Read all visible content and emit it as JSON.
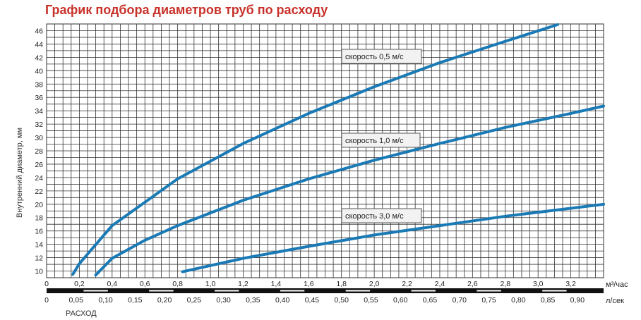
{
  "page": {
    "title": "График подбора диаметров труб по расходу"
  },
  "colors": {
    "title": "#c8312a",
    "curve": "#1a7ab6",
    "grid": "#333333",
    "axis_bar": "#111111"
  },
  "chart_data": {
    "type": "line",
    "title": "График подбора диаметров труб по расходу",
    "ylabel": "Внутренний диаметр, мм",
    "xlabel": "РАСХОД",
    "x_unit_primary": "м³/час",
    "x_unit_secondary": "л/сек",
    "xlim": [
      0,
      3.4
    ],
    "ylim": [
      9,
      47
    ],
    "grid": true,
    "y_ticks": [
      10,
      12,
      14,
      16,
      18,
      20,
      22,
      24,
      26,
      28,
      30,
      32,
      34,
      36,
      38,
      40,
      42,
      44,
      46
    ],
    "x_ticks_primary": [
      "0",
      "0,2",
      "0,4",
      "0,6",
      "0,8",
      "1,0",
      "1,2",
      "1,4",
      "1,6",
      "1,8",
      "2,0",
      "2,2",
      "2,4",
      "2,6",
      "2,8",
      "3,0",
      "3,2"
    ],
    "x_ticks_secondary": [
      "0",
      "0,05",
      "0,10",
      "0,15",
      "0,20",
      "0,25",
      "0,30",
      "0,35",
      "0,40",
      "0,45",
      "0,50",
      "0,55",
      "0,60",
      "0,65",
      "0,70",
      "0,75",
      "0,80",
      "0,85",
      "0,90"
    ],
    "series": [
      {
        "name": "скорость 0,5 м/с",
        "x": [
          0.16,
          0.2,
          0.4,
          0.8,
          1.2,
          1.6,
          2.0,
          2.4,
          2.8,
          3.12
        ],
        "y": [
          9.5,
          11.1,
          16.8,
          23.8,
          29.1,
          33.6,
          37.6,
          41.2,
          44.4,
          46.9
        ]
      },
      {
        "name": "скорость 1,0 м/с",
        "x": [
          0.3,
          0.4,
          0.6,
          0.8,
          1.2,
          1.6,
          2.0,
          2.4,
          2.8,
          3.2,
          3.4
        ],
        "y": [
          9.4,
          11.9,
          14.6,
          16.8,
          20.6,
          23.8,
          26.6,
          29.1,
          31.5,
          33.6,
          34.7
        ]
      },
      {
        "name": "скорость 3,0 м/с",
        "x": [
          0.83,
          1.2,
          1.6,
          2.0,
          2.4,
          2.8,
          3.2,
          3.4
        ],
        "y": [
          9.9,
          11.9,
          13.7,
          15.4,
          16.8,
          18.2,
          19.4,
          20.0
        ]
      }
    ]
  }
}
